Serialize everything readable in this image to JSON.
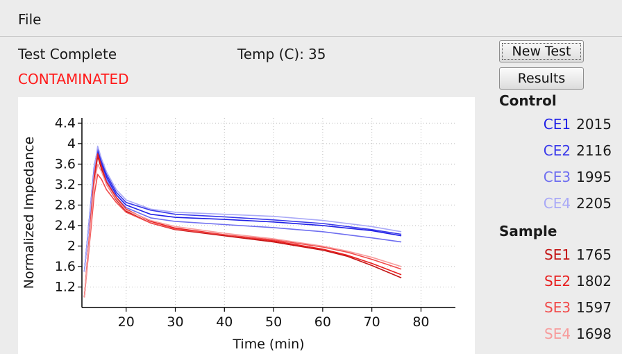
{
  "menu": {
    "file": "File"
  },
  "status": {
    "state": "Test Complete",
    "temp_label": "Temp (C):",
    "temp_value": "35",
    "result": "CONTAMINATED",
    "result_color": "#ff1a1a"
  },
  "buttons": {
    "new_test": "New Test",
    "results": "Results"
  },
  "legend": {
    "control_title": "Control",
    "sample_title": "Sample",
    "control": [
      {
        "label": "CE1",
        "value": "2015",
        "color": "#1f1fe6"
      },
      {
        "label": "CE2",
        "value": "2116",
        "color": "#3a3aea"
      },
      {
        "label": "CE3",
        "value": "1995",
        "color": "#6e6ef0"
      },
      {
        "label": "CE4",
        "value": "2205",
        "color": "#a9a9f7"
      }
    ],
    "sample": [
      {
        "label": "SE1",
        "value": "1765",
        "color": "#c41515"
      },
      {
        "label": "SE2",
        "value": "1802",
        "color": "#e81f1f"
      },
      {
        "label": "SE3",
        "value": "1597",
        "color": "#f14a4a"
      },
      {
        "label": "SE4",
        "value": "1698",
        "color": "#f79c9c"
      }
    ]
  },
  "chart_data": {
    "type": "line",
    "xlabel": "Time (min)",
    "ylabel": "Normalized Impedance",
    "xlim": [
      11,
      87
    ],
    "ylim": [
      0.8,
      4.5
    ],
    "xticks": [
      "20",
      "30",
      "40",
      "50",
      "60",
      "70",
      "80"
    ],
    "yticks": [
      "1.2",
      "1.6",
      "2",
      "2.4",
      "2.8",
      "3.2",
      "3.6",
      "4",
      "4.4"
    ],
    "grid": true,
    "series": [
      {
        "name": "CE1",
        "color": "#1f1fe6",
        "x": [
          11.5,
          13.5,
          14.2,
          15,
          16,
          18,
          20,
          25,
          30,
          40,
          50,
          60,
          70,
          76
        ],
        "y": [
          1.5,
          3.5,
          3.85,
          3.6,
          3.35,
          3.0,
          2.8,
          2.62,
          2.56,
          2.52,
          2.47,
          2.4,
          2.3,
          2.2
        ]
      },
      {
        "name": "CE2",
        "color": "#3a3aea",
        "x": [
          11.5,
          13.5,
          14.2,
          15,
          16,
          18,
          20,
          25,
          30,
          40,
          50,
          60,
          70,
          76
        ],
        "y": [
          1.5,
          3.55,
          3.9,
          3.65,
          3.4,
          3.05,
          2.85,
          2.7,
          2.62,
          2.57,
          2.51,
          2.44,
          2.32,
          2.23
        ]
      },
      {
        "name": "CE3",
        "color": "#6e6ef0",
        "x": [
          11.5,
          13.5,
          14.2,
          15,
          16,
          18,
          20,
          25,
          30,
          40,
          50,
          60,
          70,
          76
        ],
        "y": [
          1.5,
          3.45,
          3.8,
          3.55,
          3.3,
          2.95,
          2.75,
          2.55,
          2.48,
          2.42,
          2.36,
          2.28,
          2.16,
          2.08
        ]
      },
      {
        "name": "CE4",
        "color": "#a9a9f7",
        "x": [
          11.5,
          13.5,
          14.2,
          15,
          16,
          18,
          20,
          25,
          30,
          40,
          50,
          60,
          70,
          76
        ],
        "y": [
          1.5,
          3.5,
          3.95,
          3.7,
          3.45,
          3.1,
          2.9,
          2.72,
          2.66,
          2.62,
          2.58,
          2.5,
          2.38,
          2.28
        ]
      },
      {
        "name": "SE1",
        "color": "#c41515",
        "x": [
          11.5,
          13.5,
          14.2,
          15,
          16,
          18,
          20,
          25,
          30,
          40,
          50,
          60,
          65,
          70,
          76
        ],
        "y": [
          1.0,
          3.3,
          3.75,
          3.5,
          3.2,
          2.9,
          2.68,
          2.45,
          2.32,
          2.2,
          2.08,
          1.92,
          1.8,
          1.62,
          1.38
        ]
      },
      {
        "name": "SE2",
        "color": "#e81f1f",
        "x": [
          11.5,
          13.5,
          14.2,
          15,
          16,
          18,
          20,
          25,
          30,
          40,
          50,
          60,
          65,
          70,
          76
        ],
        "y": [
          1.0,
          3.35,
          3.8,
          3.55,
          3.25,
          2.95,
          2.72,
          2.48,
          2.35,
          2.22,
          2.1,
          1.94,
          1.82,
          1.66,
          1.44
        ]
      },
      {
        "name": "SE3",
        "color": "#f14a4a",
        "x": [
          11.5,
          13.5,
          14.2,
          15,
          16,
          18,
          20,
          25,
          30,
          40,
          50,
          60,
          65,
          70,
          76
        ],
        "y": [
          1.0,
          3.0,
          3.4,
          3.3,
          3.1,
          2.85,
          2.66,
          2.45,
          2.33,
          2.22,
          2.12,
          1.98,
          1.88,
          1.74,
          1.55
        ]
      },
      {
        "name": "SE4",
        "color": "#f79c9c",
        "x": [
          11.5,
          13.5,
          14.2,
          15,
          16,
          18,
          20,
          25,
          30,
          40,
          50,
          60,
          65,
          70,
          76
        ],
        "y": [
          1.0,
          3.2,
          3.6,
          3.45,
          3.2,
          2.92,
          2.7,
          2.5,
          2.38,
          2.25,
          2.14,
          2.0,
          1.9,
          1.78,
          1.6
        ]
      }
    ]
  }
}
